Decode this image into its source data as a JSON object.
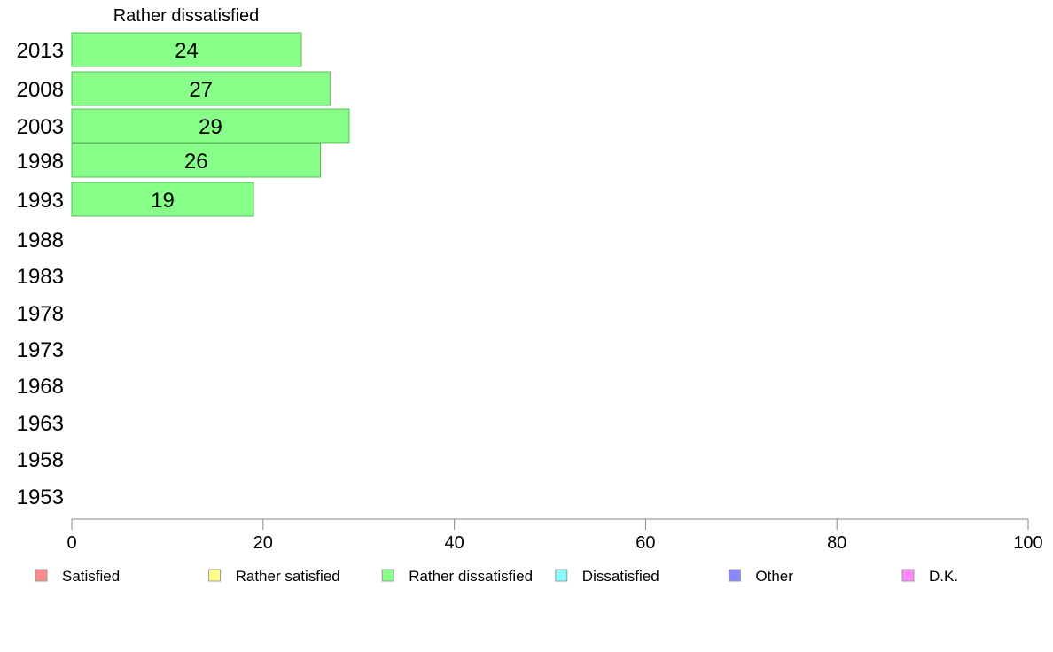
{
  "chart_data": {
    "type": "bar",
    "orientation": "horizontal",
    "series_title": "Rather dissatisfied",
    "categories": [
      "2013",
      "2008",
      "2003",
      "1998",
      "1993",
      "1988",
      "1983",
      "1978",
      "1973",
      "1968",
      "1963",
      "1958",
      "1953"
    ],
    "series": [
      {
        "name": "Rather dissatisfied",
        "color": "#88ff88",
        "values": [
          24,
          27,
          29,
          26,
          19,
          null,
          null,
          null,
          null,
          null,
          null,
          null,
          null
        ]
      }
    ],
    "xlim": [
      0,
      100
    ],
    "xticks": [
      "0",
      "20",
      "40",
      "60",
      "80",
      "100"
    ],
    "grid": false,
    "legend_position": "bottom",
    "legend": [
      {
        "label": "Satisfied",
        "color": "#ff8888"
      },
      {
        "label": "Rather satisfied",
        "color": "#ffff88"
      },
      {
        "label": "Rather dissatisfied",
        "color": "#88ff88"
      },
      {
        "label": "Dissatisfied",
        "color": "#88ffff"
      },
      {
        "label": "Other",
        "color": "#8888ff"
      },
      {
        "label": "D.K.",
        "color": "#ff88ff"
      }
    ]
  }
}
